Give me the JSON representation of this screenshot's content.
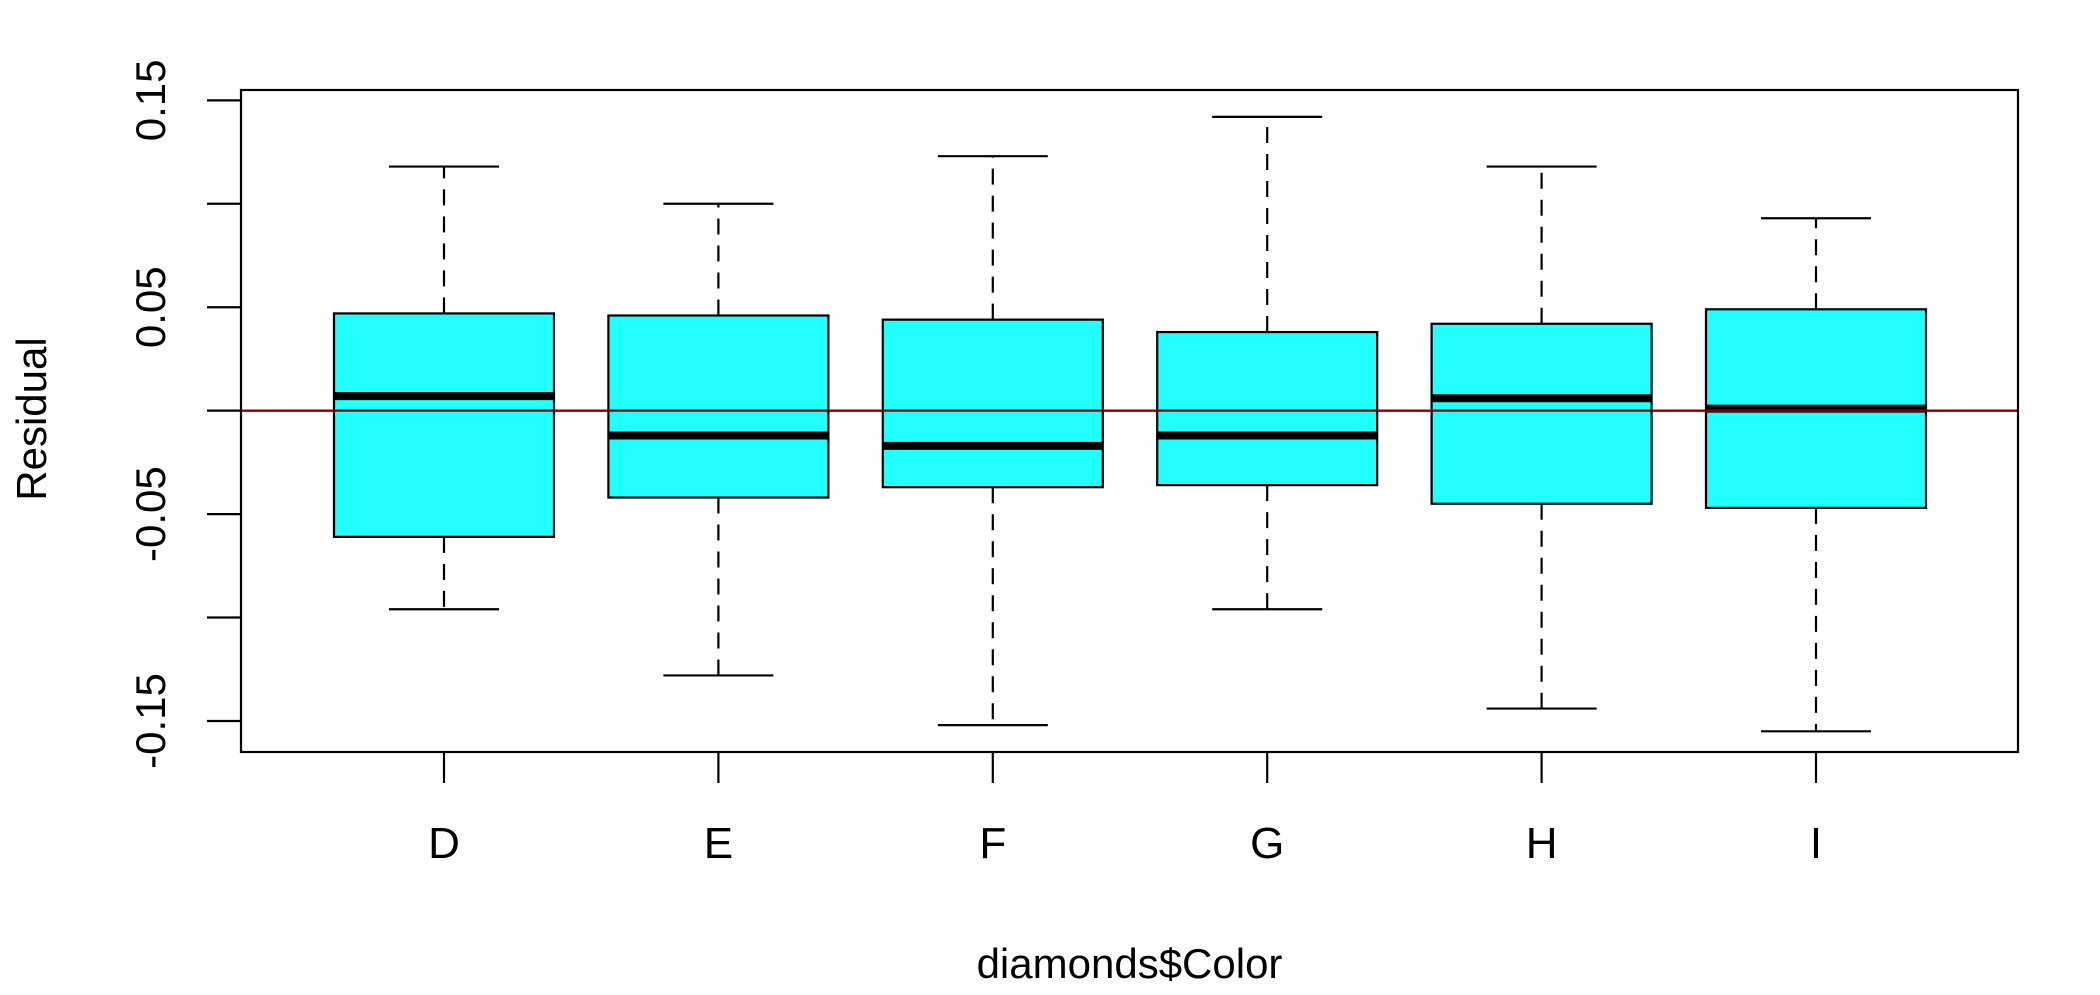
{
  "chart_data": {
    "type": "boxplot",
    "title": "",
    "xlabel": "diamonds$Color",
    "ylabel": "Residual",
    "ylim": [
      -0.165,
      0.155
    ],
    "yticks": [
      -0.15,
      -0.1,
      -0.05,
      0,
      0.05,
      0.1,
      0.15
    ],
    "ytick_labels": [
      "-0.15",
      "",
      "-0.05",
      "",
      "0.05",
      "",
      "0.15"
    ],
    "categories": [
      "D",
      "E",
      "F",
      "G",
      "H",
      "I"
    ],
    "boxes": [
      {
        "category": "D",
        "whisker_low": -0.096,
        "q1": -0.061,
        "median": 0.007,
        "q3": 0.047,
        "whisker_high": 0.118
      },
      {
        "category": "E",
        "whisker_low": -0.128,
        "q1": -0.042,
        "median": -0.012,
        "q3": 0.046,
        "whisker_high": 0.1
      },
      {
        "category": "F",
        "whisker_low": -0.152,
        "q1": -0.037,
        "median": -0.017,
        "q3": 0.044,
        "whisker_high": 0.123
      },
      {
        "category": "G",
        "whisker_low": -0.096,
        "q1": -0.036,
        "median": -0.012,
        "q3": 0.038,
        "whisker_high": 0.142
      },
      {
        "category": "H",
        "whisker_low": -0.144,
        "q1": -0.045,
        "median": 0.006,
        "q3": 0.042,
        "whisker_high": 0.118
      },
      {
        "category": "I",
        "whisker_low": -0.155,
        "q1": -0.047,
        "median": 0.001,
        "q3": 0.049,
        "whisker_high": 0.093
      }
    ],
    "reference_line": {
      "y": 0,
      "color": "#8b0000"
    },
    "box_fill": "#22ffff",
    "grid": false,
    "legend": "none"
  }
}
